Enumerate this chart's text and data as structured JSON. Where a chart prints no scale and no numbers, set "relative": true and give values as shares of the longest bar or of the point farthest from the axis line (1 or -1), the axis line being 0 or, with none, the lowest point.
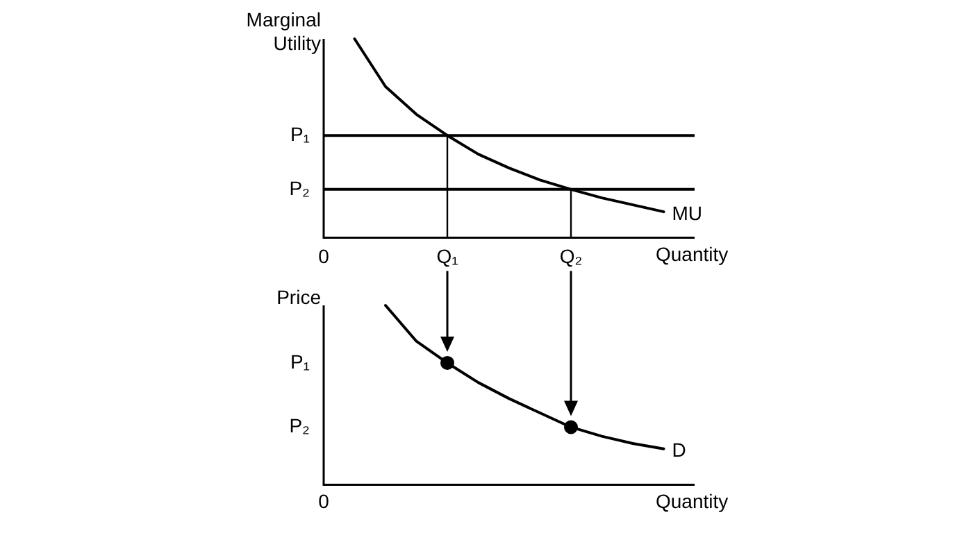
{
  "chart_data": [
    {
      "type": "line",
      "ylabel": "Marginal Utility",
      "xlabel": "Quantity",
      "relative": true,
      "legend": false,
      "marker": "none",
      "categories": [
        "0",
        null,
        null,
        null,
        "Q₁",
        null,
        null,
        null,
        "Q₂",
        null,
        null,
        null,
        null
      ],
      "series": [
        {
          "name": "MU",
          "color": "#000000",
          "values": [
            null,
            1,
            0.76,
            0.62,
            0.514,
            0.42,
            0.35,
            0.29,
            0.243,
            0.2,
            0.165,
            0.13,
            null
          ]
        }
      ],
      "ref_lines": [
        {
          "axis": "y",
          "value": 0.514,
          "label": "P₁"
        },
        {
          "axis": "y",
          "value": 0.243,
          "label": "P₂"
        }
      ]
    },
    {
      "type": "line",
      "ylabel": "Price",
      "xlabel": "Quantity",
      "relative": true,
      "legend": false,
      "marker": "none",
      "categories": [
        null,
        null,
        null,
        null,
        null,
        null,
        null,
        null,
        null,
        null,
        null,
        null,
        null
      ],
      "series": [
        {
          "name": "D",
          "color": "#000000",
          "values": [
            null,
            null,
            1,
            0.8,
            0.679,
            0.57,
            0.48,
            0.4,
            0.321,
            0.27,
            0.23,
            0.2,
            null
          ]
        },
        {
          "type": "scatter",
          "marker": "circle",
          "color": "#000000",
          "values": [
            null,
            null,
            null,
            null,
            0.679,
            null,
            null,
            null,
            0.321,
            null,
            null,
            null,
            null
          ]
        }
      ],
      "annotations": [
        "P₁",
        "P₂",
        "0"
      ]
    }
  ]
}
